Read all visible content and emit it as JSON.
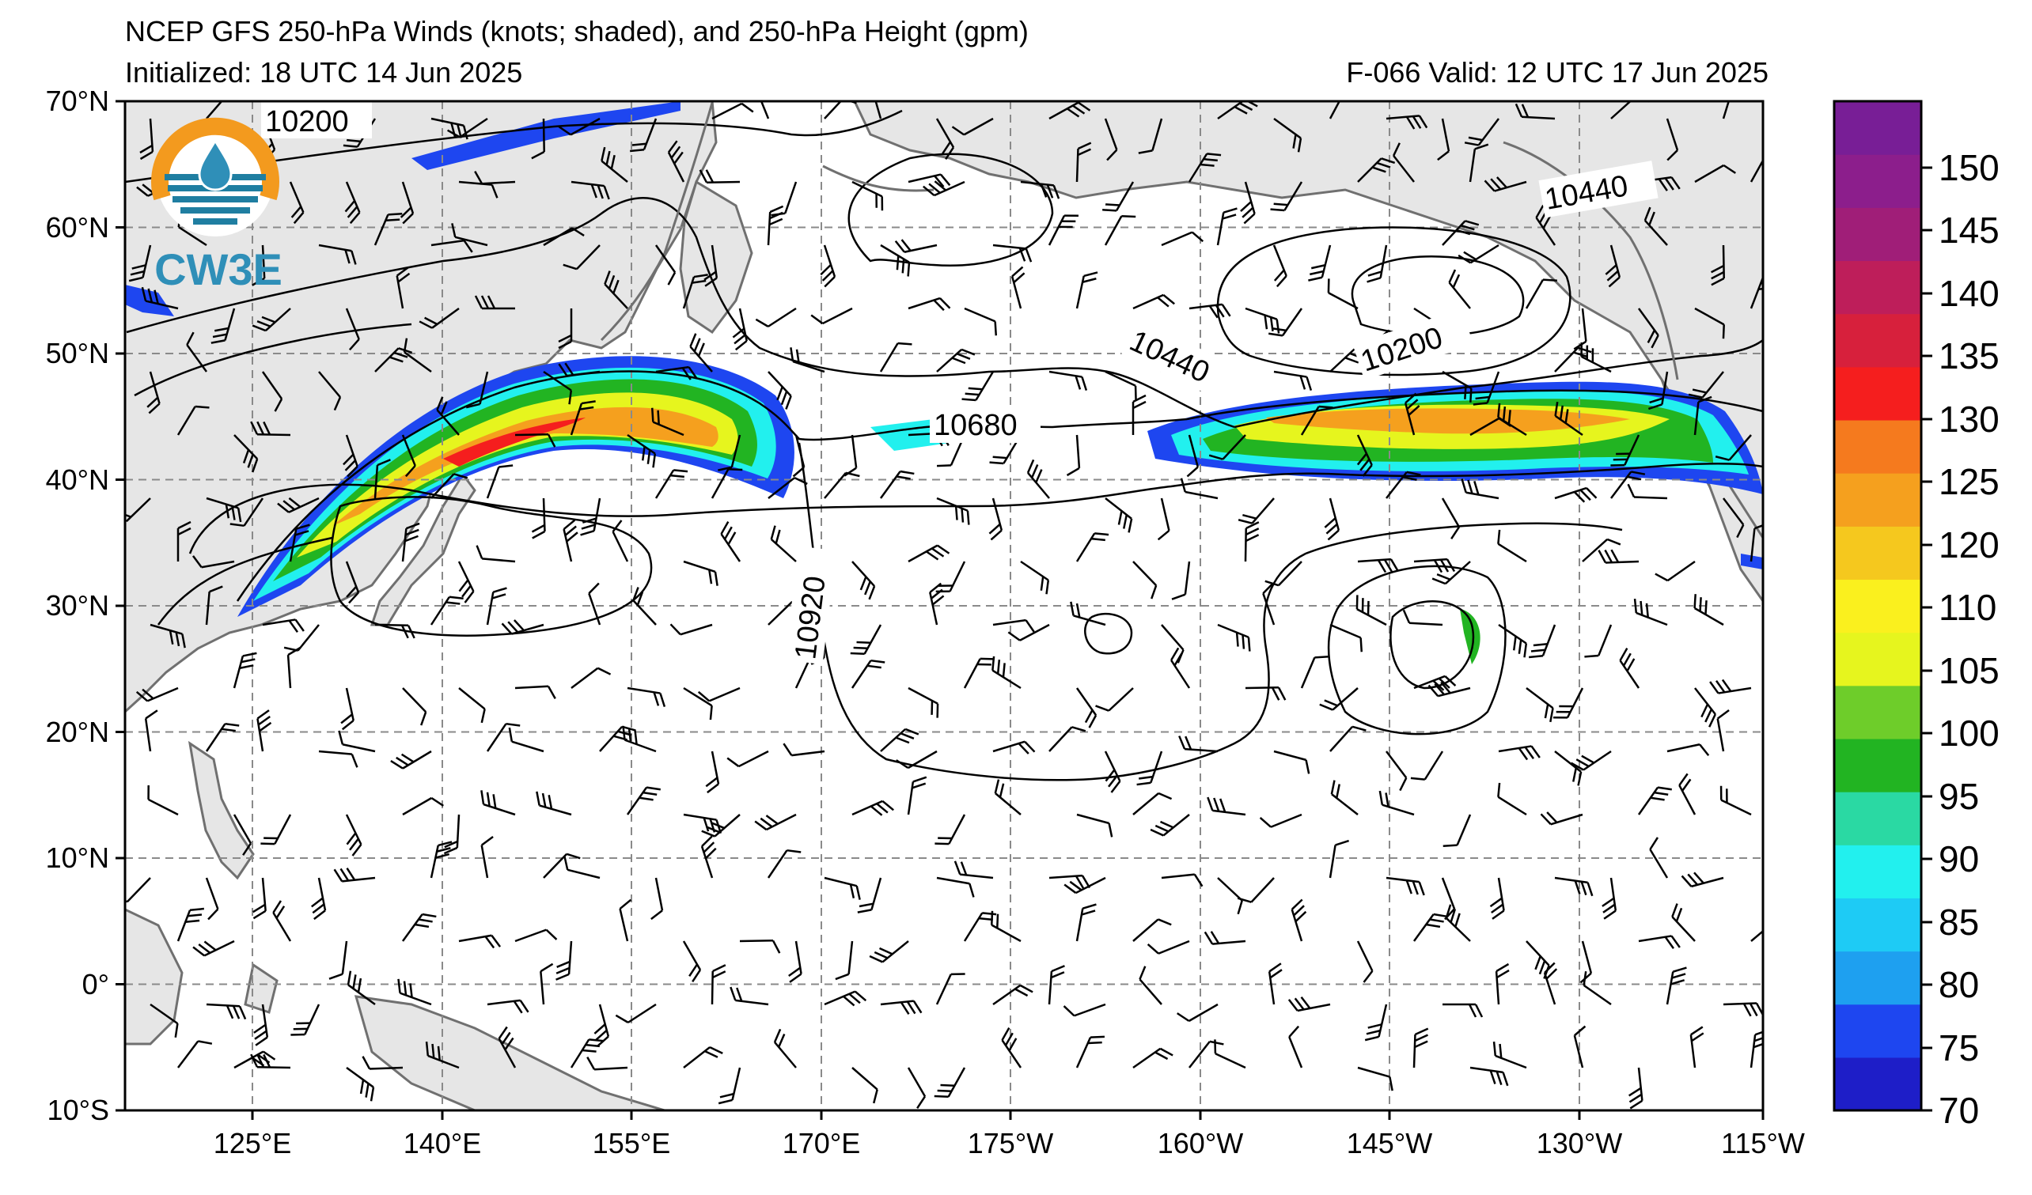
{
  "header": {
    "title": "NCEP GFS 250-hPa Winds (knots; shaded), and 250-hPa Height (gpm)",
    "initialized": "Initialized: 18 UTC 14 Jun 2025",
    "valid": "F-066  Valid: 12 UTC 17 Jun 2025"
  },
  "logo": {
    "text": "CW3E",
    "ring_color": "#f39a1e",
    "band_color": "#1f7ea1",
    "text_color": "#2f8fb8"
  },
  "axes": {
    "lat_labels": [
      "70°N",
      "60°N",
      "50°N",
      "40°N",
      "30°N",
      "20°N",
      "10°N",
      "0°",
      "10°S"
    ],
    "lon_labels": [
      "125°E",
      "140°E",
      "155°E",
      "170°E",
      "175°W",
      "160°W",
      "145°W",
      "130°W",
      "115°W"
    ]
  },
  "contour_labels": [
    "10200",
    "10440",
    "10440",
    "10200",
    "10680",
    "10920"
  ],
  "colorbar": {
    "ticks": [
      "70",
      "75",
      "80",
      "85",
      "90",
      "95",
      "100",
      "105",
      "110",
      "120",
      "125",
      "130",
      "135",
      "140",
      "145",
      "150"
    ],
    "colors": [
      "#1e1ec8",
      "#1e46f0",
      "#1ea0f0",
      "#1ecbf5",
      "#22f0ee",
      "#2ad9a3",
      "#22b422",
      "#6ecd2a",
      "#e6f51e",
      "#faf01e",
      "#f5c81e",
      "#f5a01e",
      "#f57a1e",
      "#f51e1e",
      "#d7203c",
      "#be1e5a",
      "#a01e78",
      "#8c1e8c",
      "#781e96"
    ]
  },
  "colors": {
    "land": "#e6e6e6",
    "coast": "#707070",
    "grid": "#8a8a8a"
  }
}
